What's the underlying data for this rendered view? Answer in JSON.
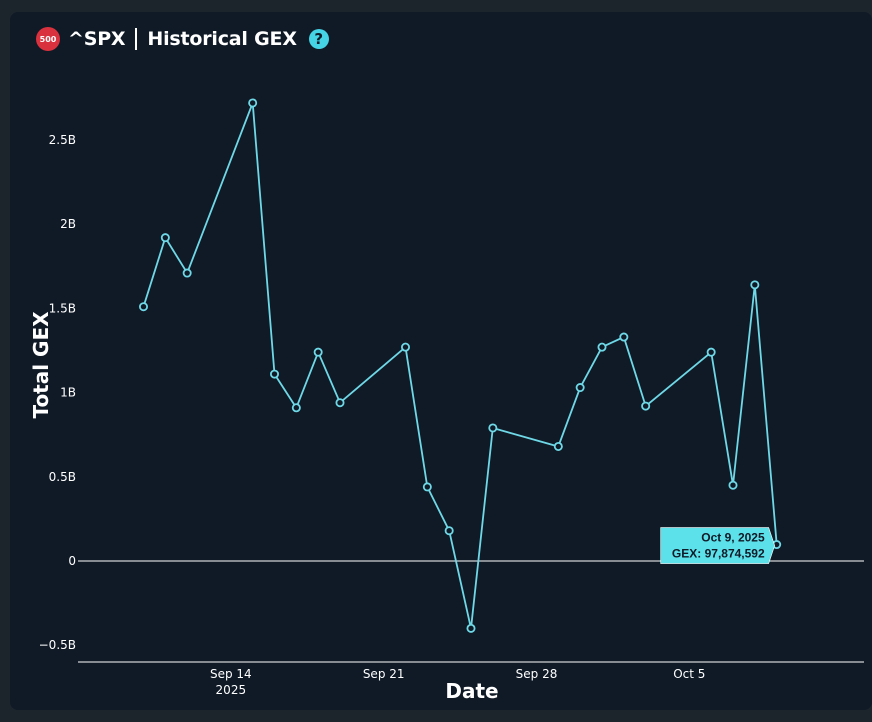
{
  "header": {
    "badge_text": "500",
    "symbol": "^SPX",
    "title": "Historical GEX",
    "help_icon": "question-circle-icon",
    "help_glyph": "?"
  },
  "colors": {
    "background": "#1c242c",
    "panel": "#101a27",
    "line": "#6fd8e6",
    "badge": "#d9313d",
    "accent": "#45d3e6",
    "tooltip": "#5ce1ea"
  },
  "chart_data": {
    "type": "line",
    "xlabel": "Date",
    "ylabel": "Total GEX",
    "ylim": [
      -0.6,
      2.9
    ],
    "y_unit": "B",
    "y_ticks": [
      {
        "value": -0.5,
        "label": "−0.5B"
      },
      {
        "value": 0,
        "label": "0"
      },
      {
        "value": 0.5,
        "label": "0.5B"
      },
      {
        "value": 1,
        "label": "1B"
      },
      {
        "value": 1.5,
        "label": "1.5B"
      },
      {
        "value": 2,
        "label": "2B"
      },
      {
        "value": 2.5,
        "label": "2.5B"
      }
    ],
    "x_ticks": [
      {
        "date": "2025-09-14",
        "label": "Sep 14",
        "sublabel": "2025"
      },
      {
        "date": "2025-09-21",
        "label": "Sep 21",
        "sublabel": ""
      },
      {
        "date": "2025-09-28",
        "label": "Sep 28",
        "sublabel": ""
      },
      {
        "date": "2025-10-05",
        "label": "Oct 5",
        "sublabel": ""
      }
    ],
    "xlim": [
      "2025-09-07",
      "2025-10-13"
    ],
    "zero_line": true,
    "grid": false,
    "series": [
      {
        "points": [
          {
            "x": "2025-09-10",
            "y": 1.51
          },
          {
            "x": "2025-09-11",
            "y": 1.92
          },
          {
            "x": "2025-09-12",
            "y": 1.71
          },
          {
            "x": "2025-09-15",
            "y": 2.72
          },
          {
            "x": "2025-09-16",
            "y": 1.11
          },
          {
            "x": "2025-09-17",
            "y": 0.91
          },
          {
            "x": "2025-09-18",
            "y": 1.24
          },
          {
            "x": "2025-09-19",
            "y": 0.94
          },
          {
            "x": "2025-09-22",
            "y": 1.27
          },
          {
            "x": "2025-09-23",
            "y": 0.44
          },
          {
            "x": "2025-09-24",
            "y": 0.18
          },
          {
            "x": "2025-09-25",
            "y": -0.4
          },
          {
            "x": "2025-09-26",
            "y": 0.79
          },
          {
            "x": "2025-09-29",
            "y": 0.68
          },
          {
            "x": "2025-09-30",
            "y": 1.03
          },
          {
            "x": "2025-10-01",
            "y": 1.27
          },
          {
            "x": "2025-10-02",
            "y": 1.33
          },
          {
            "x": "2025-10-03",
            "y": 0.92
          },
          {
            "x": "2025-10-06",
            "y": 1.24
          },
          {
            "x": "2025-10-07",
            "y": 0.45
          },
          {
            "x": "2025-10-08",
            "y": 1.64
          },
          {
            "x": "2025-10-09",
            "y": 0.0979
          }
        ]
      }
    ],
    "tooltip": {
      "date": "Oct 9, 2025",
      "value_text": "GEX: 97,874,592",
      "x": "2025-10-09",
      "y": 0.0979
    }
  }
}
